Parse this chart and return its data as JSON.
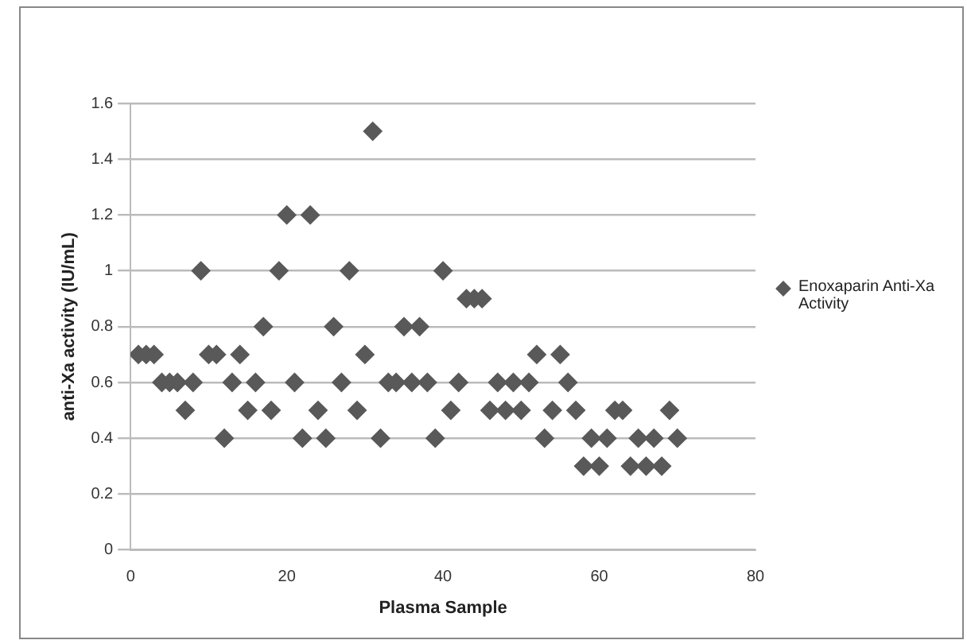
{
  "chart_data": {
    "type": "scatter",
    "xlabel": "Plasma Sample",
    "ylabel": "anti-Xa activity (IU/mL)",
    "xlim": [
      0,
      80
    ],
    "xticks": [
      0,
      20,
      40,
      60,
      80
    ],
    "ylim": [
      0,
      1.6
    ],
    "yticks": [
      0,
      0.2,
      0.4,
      0.6,
      0.8,
      1,
      1.2,
      1.4,
      1.6
    ],
    "grid": "y",
    "legend": "right",
    "marker": "diamond",
    "series": [
      {
        "name": "Enoxaparin Anti-Xa Activity",
        "color": "#595959",
        "x": [
          1,
          2,
          3,
          4,
          5,
          6,
          7,
          8,
          9,
          10,
          11,
          12,
          13,
          14,
          15,
          16,
          17,
          18,
          19,
          20,
          21,
          22,
          23,
          24,
          25,
          26,
          27,
          28,
          29,
          30,
          31,
          32,
          33,
          34,
          35,
          36,
          37,
          38,
          39,
          40,
          41,
          42,
          43,
          44,
          45,
          46,
          47,
          48,
          49,
          50,
          51,
          52,
          53,
          54,
          55,
          56,
          57,
          58,
          59,
          60,
          61,
          62,
          63,
          64,
          65,
          66,
          67,
          68,
          69,
          70
        ],
        "values": [
          0.7,
          0.7,
          0.7,
          0.6,
          0.6,
          0.6,
          0.5,
          0.6,
          1.0,
          0.7,
          0.7,
          0.4,
          0.6,
          0.7,
          0.5,
          0.6,
          0.8,
          0.5,
          1.0,
          1.2,
          0.6,
          0.4,
          1.2,
          0.5,
          0.4,
          0.8,
          0.6,
          1.0,
          0.5,
          0.7,
          1.5,
          0.4,
          0.6,
          0.6,
          0.8,
          0.6,
          0.8,
          0.6,
          0.4,
          1.0,
          0.5,
          0.6,
          0.9,
          0.9,
          0.9,
          0.5,
          0.6,
          0.5,
          0.6,
          0.5,
          0.6,
          0.7,
          0.4,
          0.5,
          0.7,
          0.6,
          0.5,
          0.3,
          0.4,
          0.3,
          0.4,
          0.5,
          0.5,
          0.3,
          0.4,
          0.3,
          0.4,
          0.3,
          0.5,
          0.4
        ]
      }
    ]
  }
}
